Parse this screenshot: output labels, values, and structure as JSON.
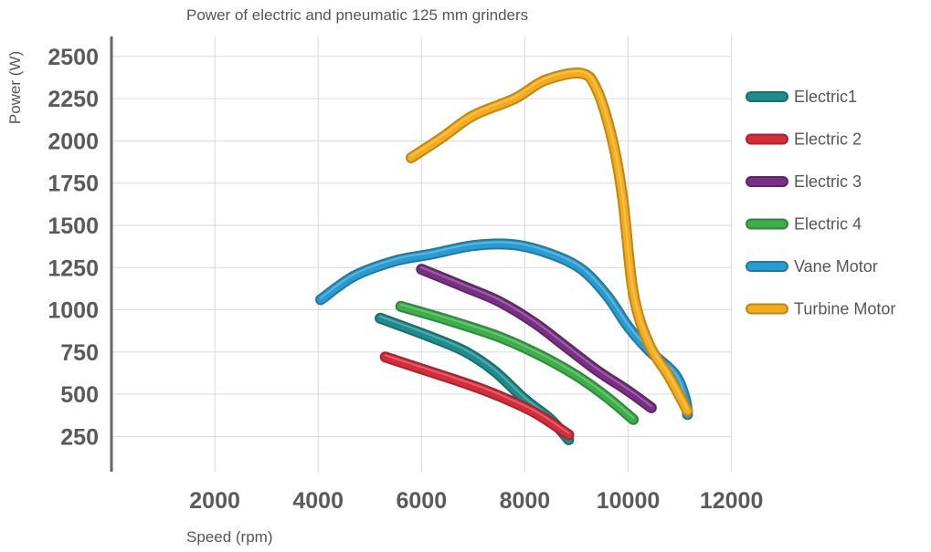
{
  "chart_data": {
    "type": "line",
    "title": "Power of electric and pneumatic 125 mm grinders",
    "xlabel": "Speed (rpm)",
    "ylabel": "Power (W)",
    "xlim": [
      0,
      14000
    ],
    "ylim": [
      0,
      2600
    ],
    "x_ticks": [
      2000,
      4000,
      6000,
      8000,
      10000,
      12000
    ],
    "y_ticks": [
      250,
      500,
      750,
      1000,
      1250,
      1500,
      1750,
      2000,
      2250,
      2500
    ],
    "grid": true,
    "legend_position": "right",
    "series": [
      {
        "name": "Electric1",
        "color": "#1f8c8c",
        "points": [
          [
            5200,
            950
          ],
          [
            6000,
            860
          ],
          [
            6800,
            760
          ],
          [
            7400,
            640
          ],
          [
            8000,
            470
          ],
          [
            8500,
            350
          ],
          [
            8850,
            230
          ]
        ]
      },
      {
        "name": "Electric 2",
        "color": "#d42e3a",
        "points": [
          [
            5300,
            720
          ],
          [
            6000,
            650
          ],
          [
            6800,
            570
          ],
          [
            7500,
            490
          ],
          [
            8200,
            390
          ],
          [
            8850,
            260
          ]
        ]
      },
      {
        "name": "Electric 3",
        "color": "#7a2f86",
        "points": [
          [
            6000,
            1240
          ],
          [
            6800,
            1140
          ],
          [
            7500,
            1050
          ],
          [
            8200,
            920
          ],
          [
            8800,
            780
          ],
          [
            9400,
            640
          ],
          [
            10000,
            520
          ],
          [
            10450,
            420
          ]
        ]
      },
      {
        "name": "Electric 4",
        "color": "#3cae4a",
        "points": [
          [
            5600,
            1020
          ],
          [
            6500,
            940
          ],
          [
            7500,
            840
          ],
          [
            8300,
            730
          ],
          [
            9000,
            610
          ],
          [
            9600,
            480
          ],
          [
            10100,
            350
          ]
        ]
      },
      {
        "name": "Vane Motor",
        "color": "#2a9bd0",
        "points": [
          [
            4050,
            1060
          ],
          [
            4700,
            1200
          ],
          [
            5500,
            1290
          ],
          [
            6200,
            1330
          ],
          [
            7000,
            1380
          ],
          [
            7800,
            1385
          ],
          [
            8500,
            1330
          ],
          [
            9100,
            1240
          ],
          [
            9600,
            1080
          ],
          [
            10000,
            900
          ],
          [
            10400,
            760
          ],
          [
            10900,
            620
          ],
          [
            11100,
            480
          ],
          [
            11150,
            380
          ]
        ]
      },
      {
        "name": "Turbine Motor",
        "color": "#f5ac1a",
        "points": [
          [
            5800,
            1900
          ],
          [
            6400,
            2020
          ],
          [
            7000,
            2150
          ],
          [
            7800,
            2250
          ],
          [
            8400,
            2360
          ],
          [
            9100,
            2400
          ],
          [
            9400,
            2300
          ],
          [
            9700,
            2000
          ],
          [
            9900,
            1650
          ],
          [
            10100,
            1100
          ],
          [
            10400,
            800
          ],
          [
            10800,
            600
          ],
          [
            11150,
            400
          ]
        ]
      }
    ]
  }
}
